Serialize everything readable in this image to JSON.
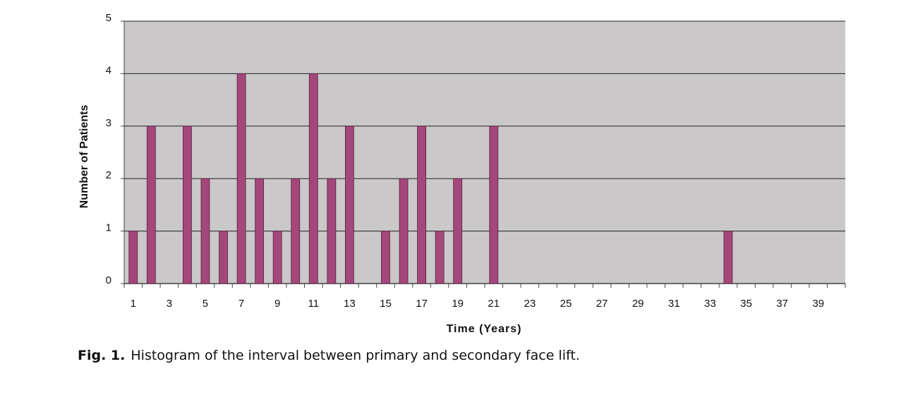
{
  "chart_data": {
    "type": "bar",
    "caption_label": "Fig. 1.",
    "caption": "Histogram of the interval between primary and secondary face lift.",
    "xlabel": "Time (Years)",
    "ylabel": "Number of Patients",
    "categories": [
      1,
      null,
      3,
      null,
      5,
      null,
      7,
      null,
      9,
      null,
      11,
      null,
      13,
      null,
      15,
      null,
      17,
      null,
      19,
      null,
      21,
      null,
      23,
      null,
      25,
      null,
      27,
      null,
      29,
      null,
      31,
      null,
      33,
      null,
      35,
      null,
      37,
      null,
      39,
      null
    ],
    "values": [
      1,
      3,
      0,
      3,
      2,
      1,
      4,
      2,
      1,
      2,
      4,
      2,
      3,
      0,
      1,
      2,
      3,
      1,
      2,
      0,
      3,
      0,
      0,
      0,
      0,
      0,
      0,
      0,
      0,
      0,
      0,
      0,
      0,
      1,
      0,
      0,
      0,
      0,
      0,
      0
    ],
    "color": "#a4477b",
    "ylim": [
      0,
      5
    ],
    "yticks": [
      0,
      1,
      2,
      3,
      4,
      5
    ],
    "grid": true
  }
}
